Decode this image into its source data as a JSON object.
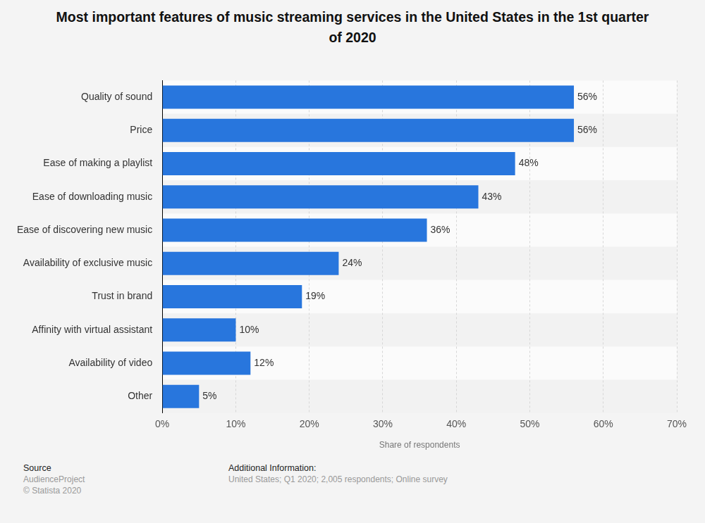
{
  "chart_data": {
    "type": "bar",
    "orientation": "horizontal",
    "title": "Most important features of music streaming services in the United States in the 1st quarter of 2020",
    "categories": [
      "Quality of sound",
      "Price",
      "Ease of making a playlist",
      "Ease of downloading music",
      "Ease of discovering new music",
      "Availability of exclusive music",
      "Trust in brand",
      "Affinity with virtual assistant",
      "Availability of video",
      "Other"
    ],
    "values": [
      56,
      56,
      48,
      43,
      36,
      24,
      19,
      10,
      12,
      5
    ],
    "value_labels": [
      "56%",
      "56%",
      "48%",
      "43%",
      "36%",
      "24%",
      "19%",
      "10%",
      "12%",
      "5%"
    ],
    "data_labels": true,
    "color": "#2876dd",
    "xlabel": "Share of respondents",
    "xlim": [
      0,
      70
    ],
    "xticks": [
      {
        "value": 0,
        "label": "0%"
      },
      {
        "value": 10,
        "label": "10%"
      },
      {
        "value": 20,
        "label": "20%"
      },
      {
        "value": 30,
        "label": "30%"
      },
      {
        "value": 40,
        "label": "40%"
      },
      {
        "value": 50,
        "label": "50%"
      },
      {
        "value": 60,
        "label": "60%"
      },
      {
        "value": 70,
        "label": "70%"
      }
    ],
    "grid": true
  },
  "footer": {
    "source_heading": "Source",
    "source": [
      "AudienceProject",
      "© Statista 2020"
    ],
    "info_heading": "Additional Information:",
    "info": "United States; Q1 2020; 2,005 respondents; Online survey"
  }
}
